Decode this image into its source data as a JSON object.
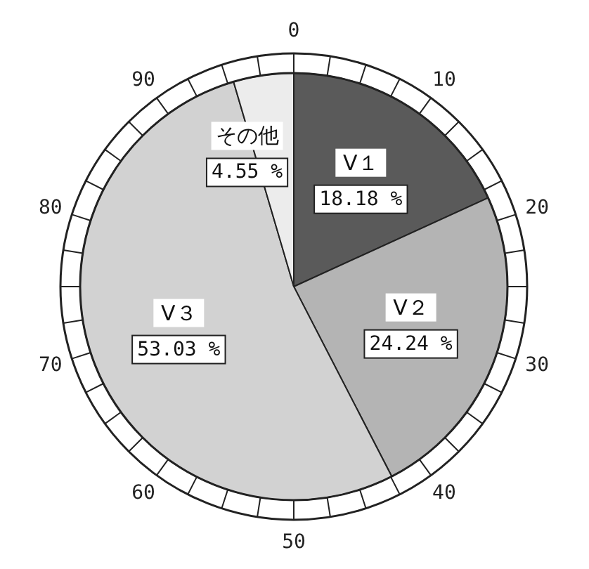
{
  "chart_data": {
    "type": "pie",
    "categories": [
      "V１",
      "V２",
      "V３",
      "その他"
    ],
    "values": [
      18.18,
      24.24,
      53.03,
      4.55
    ],
    "value_labels": [
      "18.18 %",
      "24.24 %",
      "53.03 %",
      "4.55 %"
    ],
    "colors": [
      "#5a5a5a",
      "#b4b4b4",
      "#d2d2d2",
      "#ececec"
    ],
    "annotations": [
      "0",
      "10",
      "20",
      "30",
      "40",
      "50",
      "60",
      "70",
      "80",
      "90"
    ]
  }
}
